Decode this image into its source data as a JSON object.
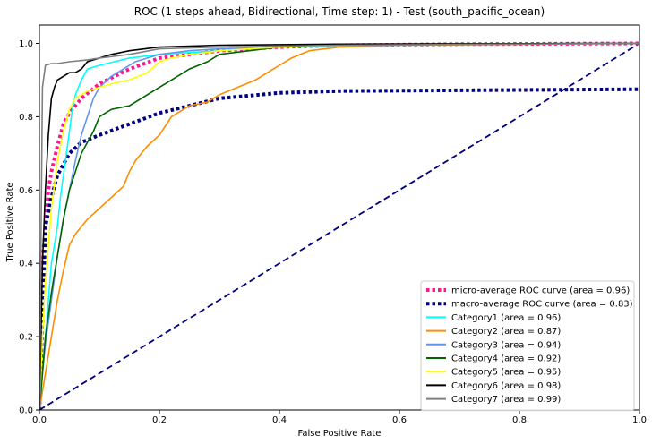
{
  "chart_data": {
    "type": "line",
    "title": "ROC (1 steps ahead, Bidirectional, Time step: 1) - Test (south_pacific_ocean)",
    "xlabel": "False Positive Rate",
    "ylabel": "True Positive Rate",
    "xlim": [
      0.0,
      1.0
    ],
    "ylim": [
      0.0,
      1.05
    ],
    "xticks": [
      "0.0",
      "0.2",
      "0.4",
      "0.6",
      "0.8",
      "1.0"
    ],
    "yticks": [
      "0.0",
      "0.2",
      "0.4",
      "0.6",
      "0.8",
      "1.0"
    ],
    "grid": false,
    "legend_position": "lower right",
    "series": [
      {
        "name": "micro-average ROC curve (area = 0.96)",
        "color": "#ff1493",
        "style": "dotted",
        "width": 4,
        "x": [
          0,
          0.005,
          0.01,
          0.015,
          0.02,
          0.03,
          0.04,
          0.05,
          0.07,
          0.1,
          0.15,
          0.2,
          0.3,
          0.4,
          0.5,
          0.7,
          1.0
        ],
        "y": [
          0,
          0.4,
          0.5,
          0.6,
          0.65,
          0.72,
          0.78,
          0.81,
          0.85,
          0.89,
          0.93,
          0.96,
          0.98,
          0.99,
          0.995,
          0.998,
          1.0
        ]
      },
      {
        "name": "macro-average ROC curve (area = 0.83)",
        "color": "#000080",
        "style": "dotted",
        "width": 4,
        "x": [
          0,
          0.01,
          0.02,
          0.03,
          0.05,
          0.07,
          0.1,
          0.15,
          0.2,
          0.3,
          0.4,
          0.5,
          0.7,
          1.0
        ],
        "y": [
          0,
          0.5,
          0.58,
          0.64,
          0.7,
          0.73,
          0.75,
          0.78,
          0.81,
          0.85,
          0.865,
          0.87,
          0.872,
          0.875
        ]
      },
      {
        "name": "Category1 (area = 0.96)",
        "color": "#00ffff",
        "style": "solid",
        "width": 1.6,
        "x": [
          0,
          0.005,
          0.01,
          0.015,
          0.02,
          0.03,
          0.035,
          0.04,
          0.045,
          0.05,
          0.055,
          0.06,
          0.07,
          0.08,
          0.1,
          0.15,
          0.2,
          0.3,
          0.4,
          0.6,
          0.8,
          1.0
        ],
        "y": [
          0,
          0.1,
          0.2,
          0.3,
          0.4,
          0.5,
          0.58,
          0.64,
          0.7,
          0.76,
          0.82,
          0.86,
          0.9,
          0.93,
          0.94,
          0.96,
          0.97,
          0.98,
          0.99,
          0.995,
          0.998,
          1.0
        ]
      },
      {
        "name": "Category2 (area = 0.87)",
        "color": "#ff8c00",
        "style": "solid",
        "width": 1.6,
        "x": [
          0,
          0.005,
          0.01,
          0.02,
          0.03,
          0.04,
          0.05,
          0.06,
          0.07,
          0.08,
          0.1,
          0.12,
          0.14,
          0.15,
          0.16,
          0.18,
          0.2,
          0.22,
          0.25,
          0.28,
          0.3,
          0.33,
          0.36,
          0.39,
          0.4,
          0.42,
          0.45,
          0.5,
          0.6,
          1.0
        ],
        "y": [
          0,
          0.05,
          0.1,
          0.2,
          0.3,
          0.38,
          0.45,
          0.48,
          0.5,
          0.52,
          0.55,
          0.58,
          0.61,
          0.65,
          0.68,
          0.72,
          0.75,
          0.8,
          0.83,
          0.84,
          0.86,
          0.88,
          0.9,
          0.93,
          0.94,
          0.96,
          0.98,
          0.99,
          0.995,
          1.0
        ]
      },
      {
        "name": "Category3 (area = 0.94)",
        "color": "#6495ed",
        "style": "solid",
        "width": 1.6,
        "x": [
          0,
          0.005,
          0.01,
          0.02,
          0.03,
          0.04,
          0.05,
          0.06,
          0.07,
          0.08,
          0.09,
          0.1,
          0.12,
          0.14,
          0.16,
          0.18,
          0.2,
          0.25,
          0.3,
          0.4,
          0.5,
          1.0
        ],
        "y": [
          0,
          0.1,
          0.18,
          0.3,
          0.42,
          0.52,
          0.6,
          0.68,
          0.75,
          0.8,
          0.85,
          0.88,
          0.91,
          0.93,
          0.95,
          0.96,
          0.97,
          0.98,
          0.985,
          0.99,
          0.995,
          1.0
        ]
      },
      {
        "name": "Category4 (area = 0.92)",
        "color": "#006400",
        "style": "solid",
        "width": 1.6,
        "x": [
          0,
          0.005,
          0.01,
          0.02,
          0.03,
          0.04,
          0.05,
          0.06,
          0.07,
          0.08,
          0.09,
          0.1,
          0.12,
          0.15,
          0.18,
          0.2,
          0.22,
          0.25,
          0.28,
          0.3,
          0.35,
          0.4,
          0.45,
          0.5,
          1.0
        ],
        "y": [
          0,
          0.1,
          0.2,
          0.32,
          0.42,
          0.52,
          0.6,
          0.65,
          0.7,
          0.73,
          0.76,
          0.8,
          0.82,
          0.83,
          0.86,
          0.88,
          0.9,
          0.93,
          0.95,
          0.97,
          0.98,
          0.99,
          0.995,
          0.998,
          1.0
        ]
      },
      {
        "name": "Category5 (area = 0.95)",
        "color": "#ffff00",
        "style": "solid",
        "width": 1.6,
        "x": [
          0,
          0.005,
          0.01,
          0.02,
          0.03,
          0.04,
          0.05,
          0.06,
          0.08,
          0.1,
          0.12,
          0.15,
          0.18,
          0.2,
          0.22,
          0.25,
          0.28,
          0.3,
          0.35,
          0.4,
          0.5,
          0.7,
          1.0
        ],
        "y": [
          0,
          0.2,
          0.35,
          0.55,
          0.68,
          0.76,
          0.82,
          0.85,
          0.87,
          0.88,
          0.89,
          0.9,
          0.92,
          0.95,
          0.96,
          0.97,
          0.975,
          0.98,
          0.985,
          0.99,
          0.995,
          0.998,
          1.0
        ]
      },
      {
        "name": "Category6 (area = 0.98)",
        "color": "#000000",
        "style": "solid",
        "width": 1.6,
        "x": [
          0,
          0.005,
          0.01,
          0.015,
          0.02,
          0.025,
          0.03,
          0.04,
          0.05,
          0.06,
          0.07,
          0.08,
          0.1,
          0.12,
          0.15,
          0.2,
          0.3,
          0.5,
          1.0
        ],
        "y": [
          0,
          0.4,
          0.6,
          0.75,
          0.85,
          0.88,
          0.9,
          0.91,
          0.92,
          0.92,
          0.93,
          0.95,
          0.96,
          0.97,
          0.98,
          0.99,
          0.995,
          0.998,
          1.0
        ]
      },
      {
        "name": "Category7 (area = 0.99)",
        "color": "#808080",
        "style": "solid",
        "width": 1.6,
        "x": [
          0,
          0.005,
          0.01,
          0.02,
          0.03,
          0.05,
          0.08,
          0.1,
          0.15,
          0.2,
          0.3,
          0.5,
          1.0
        ],
        "y": [
          0,
          0.88,
          0.94,
          0.945,
          0.945,
          0.95,
          0.955,
          0.96,
          0.97,
          0.985,
          0.99,
          0.995,
          1.0
        ]
      },
      {
        "name": "",
        "color": "#000080",
        "style": "dashed",
        "width": 1.8,
        "x": [
          0,
          1
        ],
        "y": [
          0,
          1
        ]
      }
    ]
  }
}
